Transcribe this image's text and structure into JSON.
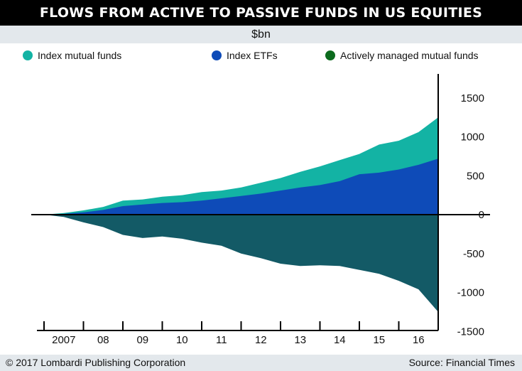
{
  "header": {
    "title": "FLOWS FROM ACTIVE TO PASSIVE FUNDS IN US EQUITIES",
    "unit": "$bn"
  },
  "footer": {
    "copyright": "© 2017 Lombardi Publishing Corporation",
    "source": "Source: Financial Times"
  },
  "chart_data": {
    "type": "area",
    "legend_position": "top",
    "grid": false,
    "x": [
      "2006-12",
      "2007-06",
      "2007-12",
      "2008-06",
      "2008-12",
      "2009-06",
      "2009-12",
      "2010-06",
      "2010-12",
      "2011-06",
      "2011-12",
      "2012-06",
      "2012-12",
      "2013-06",
      "2013-12",
      "2014-06",
      "2014-12",
      "2015-06",
      "2015-12",
      "2016-06",
      "2016-12"
    ],
    "ylim": [
      -1500,
      1500
    ],
    "yticks": [
      1500,
      1000,
      500,
      0,
      -500,
      -1000,
      -1500
    ],
    "ytick_labels": [
      "1500",
      "1000",
      "500",
      "0",
      "-500",
      "-1000",
      "-1500"
    ],
    "xtick_labels": [
      "2007",
      "08",
      "09",
      "10",
      "11",
      "12",
      "13",
      "14",
      "15",
      "16"
    ],
    "series": [
      {
        "name": "Index mutual funds",
        "color": "#13b3a4",
        "values": [
          0,
          20,
          55,
          100,
          180,
          195,
          230,
          250,
          290,
          310,
          350,
          410,
          470,
          550,
          620,
          700,
          780,
          900,
          950,
          1060,
          1250
        ]
      },
      {
        "name": "Index ETFs",
        "color": "#0e4bb8",
        "values": [
          0,
          10,
          30,
          60,
          110,
          130,
          150,
          160,
          180,
          210,
          240,
          270,
          310,
          350,
          380,
          430,
          520,
          540,
          580,
          640,
          720
        ]
      },
      {
        "name": "Actively managed mutual funds",
        "color": "#0c6b1e",
        "values": [
          0,
          -30,
          -100,
          -160,
          -260,
          -300,
          -280,
          -310,
          -360,
          -400,
          -500,
          -560,
          -630,
          -660,
          -650,
          -660,
          -710,
          -760,
          -850,
          -960,
          -1250
        ]
      }
    ]
  }
}
